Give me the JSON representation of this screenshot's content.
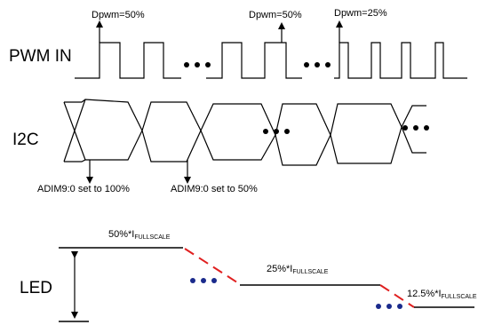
{
  "rows": {
    "pwm": "PWM IN",
    "i2c": "I2C",
    "led": "LED"
  },
  "pwm_annotations": [
    "Dpwm=50%",
    "Dpwm=50%",
    "Dpwm=25%"
  ],
  "i2c_annotations": [
    "ADIM9:0 set to 100%",
    "ADIM9:0 set to 50%"
  ],
  "led_levels": [
    {
      "prefix": "50%*I",
      "sub": "FULLSCALE"
    },
    {
      "prefix": "25%*I",
      "sub": "FULLSCALE"
    },
    {
      "prefix": "12.5%*I",
      "sub": "FULLSCALE"
    }
  ],
  "colors": {
    "signal": "#000000",
    "transition": "#e02020",
    "dots": "#1a2a8c"
  }
}
